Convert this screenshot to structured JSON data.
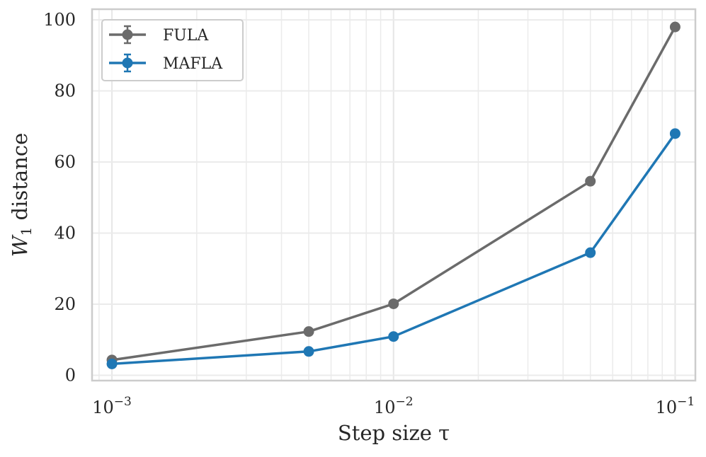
{
  "chart_data": {
    "type": "line",
    "xscale": "log",
    "xlim": [
      0.00085,
      0.118
    ],
    "ylim": [
      -1.5,
      103
    ],
    "x": [
      0.001,
      0.005,
      0.01,
      0.05,
      0.1
    ],
    "x_tick_values": [
      0.001,
      0.01,
      0.1
    ],
    "x_tick_labels": [
      {
        "base": "10",
        "exp": "−3"
      },
      {
        "base": "10",
        "exp": "−2"
      },
      {
        "base": "10",
        "exp": "−1"
      }
    ],
    "y_ticks": [
      0,
      20,
      40,
      60,
      80,
      100
    ],
    "y_tick_labels": [
      "0",
      "20",
      "40",
      "60",
      "80",
      "100"
    ],
    "xlabel": "Step size τ",
    "ylabel": {
      "main": "W",
      "sub": "1",
      "rest": " distance"
    },
    "grid": true,
    "legend_position": "top-left",
    "series": [
      {
        "name": "FULA",
        "color": "#6b6b6b",
        "values": [
          4.3,
          12.3,
          20.1,
          54.6,
          98.0
        ]
      },
      {
        "name": "MAFLA",
        "color": "#1f77b4",
        "values": [
          3.2,
          6.7,
          10.9,
          34.5,
          68.0
        ]
      }
    ]
  }
}
